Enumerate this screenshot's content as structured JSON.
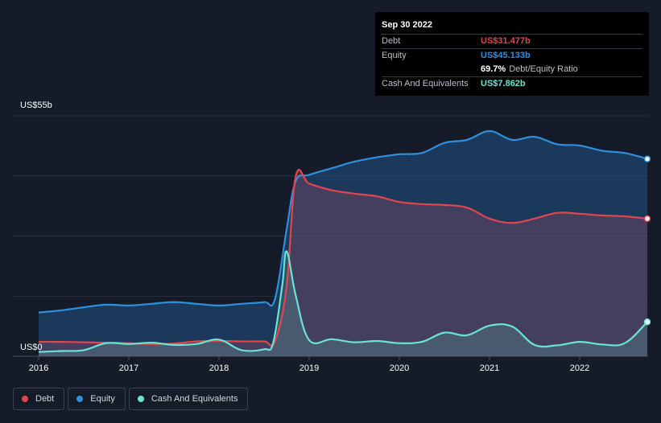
{
  "tooltip": {
    "date": "Sep 30 2022",
    "debt_label": "Debt",
    "debt_value": "US$31.477b",
    "equity_label": "Equity",
    "equity_value": "US$45.133b",
    "ratio_value": "69.7%",
    "ratio_label": "Debt/Equity Ratio",
    "cash_label": "Cash And Equivalents",
    "cash_value": "US$7.862b"
  },
  "legend": [
    {
      "label": "Debt",
      "color": "#e3454f"
    },
    {
      "label": "Equity",
      "color": "#2f8fde"
    },
    {
      "label": "Cash And Equivalents",
      "color": "#6be3d2"
    }
  ],
  "colors": {
    "debt": "#e3454f",
    "equity": "#2f8fde",
    "cash": "#6be3d2",
    "background": "#151b28"
  },
  "chart_data": {
    "type": "area",
    "ylabel_top": "US$55b",
    "ylabel_bottom": "US$0",
    "ylim": [
      0,
      55
    ],
    "xlim": [
      2016.0,
      2022.75
    ],
    "x_ticks": [
      "2016",
      "2017",
      "2018",
      "2019",
      "2020",
      "2021",
      "2022"
    ],
    "series": [
      {
        "name": "Equity",
        "x": [
          2016.0,
          2016.25,
          2016.5,
          2016.75,
          2017.0,
          2017.25,
          2017.5,
          2017.75,
          2018.0,
          2018.25,
          2018.5,
          2018.62,
          2018.75,
          2018.85,
          2019.0,
          2019.25,
          2019.5,
          2019.75,
          2020.0,
          2020.25,
          2020.5,
          2020.75,
          2021.0,
          2021.25,
          2021.5,
          2021.75,
          2022.0,
          2022.25,
          2022.5,
          2022.75
        ],
        "values": [
          10.0,
          10.5,
          11.2,
          11.8,
          11.6,
          12.0,
          12.4,
          12.0,
          11.6,
          12.0,
          12.4,
          13.0,
          29.0,
          40.0,
          41.5,
          43.0,
          44.5,
          45.5,
          46.2,
          46.5,
          48.8,
          49.5,
          51.5,
          49.5,
          50.2,
          48.5,
          48.2,
          47.0,
          46.5,
          45.133
        ]
      },
      {
        "name": "Debt",
        "x": [
          2016.0,
          2016.25,
          2016.5,
          2016.75,
          2017.0,
          2017.25,
          2017.5,
          2017.75,
          2018.0,
          2018.25,
          2018.5,
          2018.62,
          2018.75,
          2018.85,
          2019.0,
          2019.25,
          2019.5,
          2019.75,
          2020.0,
          2020.25,
          2020.5,
          2020.75,
          2021.0,
          2021.25,
          2021.5,
          2021.75,
          2022.0,
          2022.25,
          2022.5,
          2022.75
        ],
        "values": [
          3.3,
          3.3,
          3.2,
          3.1,
          3.0,
          2.8,
          2.9,
          3.4,
          3.5,
          3.4,
          3.4,
          3.4,
          16.0,
          41.0,
          39.5,
          38.0,
          37.2,
          36.6,
          35.3,
          34.8,
          34.6,
          34.0,
          31.5,
          30.5,
          31.5,
          32.8,
          32.6,
          32.2,
          32.0,
          31.477
        ]
      },
      {
        "name": "Cash And Equivalents",
        "x": [
          2016.0,
          2016.25,
          2016.5,
          2016.75,
          2017.0,
          2017.25,
          2017.5,
          2017.75,
          2018.0,
          2018.25,
          2018.5,
          2018.6,
          2018.7,
          2018.75,
          2018.85,
          2019.0,
          2019.25,
          2019.5,
          2019.75,
          2020.0,
          2020.25,
          2020.5,
          2020.75,
          2021.0,
          2021.25,
          2021.5,
          2021.75,
          2022.0,
          2022.25,
          2022.5,
          2022.75
        ],
        "values": [
          1.0,
          1.2,
          1.4,
          3.0,
          2.8,
          3.1,
          2.6,
          2.8,
          3.8,
          1.4,
          1.6,
          3.0,
          16.0,
          24.0,
          14.0,
          3.7,
          3.9,
          3.2,
          3.5,
          3.0,
          3.3,
          5.4,
          4.8,
          7.0,
          6.8,
          2.6,
          2.5,
          3.3,
          2.7,
          3.0,
          7.862
        ]
      }
    ]
  }
}
